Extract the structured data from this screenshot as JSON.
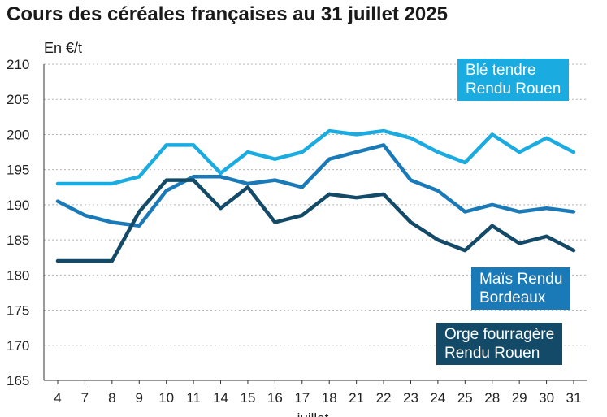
{
  "chart_data": {
    "type": "line",
    "title": "Cours des céréales françaises au 31 juillet 2025",
    "ylabel": "En €/t",
    "xlabel": "juillet",
    "ylim": [
      165,
      210
    ],
    "yticks": [
      165,
      170,
      175,
      180,
      185,
      190,
      195,
      200,
      205,
      210
    ],
    "categories": [
      "4",
      "7",
      "8",
      "9",
      "10",
      "11",
      "14",
      "15",
      "16",
      "17",
      "18",
      "21",
      "22",
      "23",
      "24",
      "25",
      "28",
      "29",
      "30",
      "31"
    ],
    "grid": "horizontal dotted",
    "series": [
      {
        "name": "Blé tendre Rendu Rouen",
        "legend_lines": [
          "Blé tendre",
          "Rendu Rouen"
        ],
        "color": "#1aabe0",
        "values": [
          193,
          193,
          193,
          194,
          198.5,
          198.5,
          194.5,
          197.5,
          196.5,
          197.5,
          200.5,
          200,
          200.5,
          199.5,
          197.5,
          196,
          200,
          197.5,
          199.5,
          197.5
        ]
      },
      {
        "name": "Maïs Rendu Bordeaux",
        "legend_lines": [
          "Maïs Rendu",
          "Bordeaux"
        ],
        "color": "#1a7ab8",
        "values": [
          190.5,
          188.5,
          187.5,
          187,
          192,
          194,
          194,
          193,
          193.5,
          192.5,
          196.5,
          197.5,
          198.5,
          193.5,
          192,
          189,
          190,
          189,
          189.5,
          189
        ]
      },
      {
        "name": "Orge fourragère Rendu Rouen",
        "legend_lines": [
          "Orge fourragère",
          "Rendu Rouen"
        ],
        "color": "#134a68",
        "values": [
          182,
          182,
          182,
          189,
          193.5,
          193.5,
          189.5,
          192.5,
          187.5,
          188.5,
          191.5,
          191,
          191.5,
          187.5,
          185,
          183.5,
          187,
          184.5,
          185.5,
          183.5
        ]
      }
    ]
  }
}
